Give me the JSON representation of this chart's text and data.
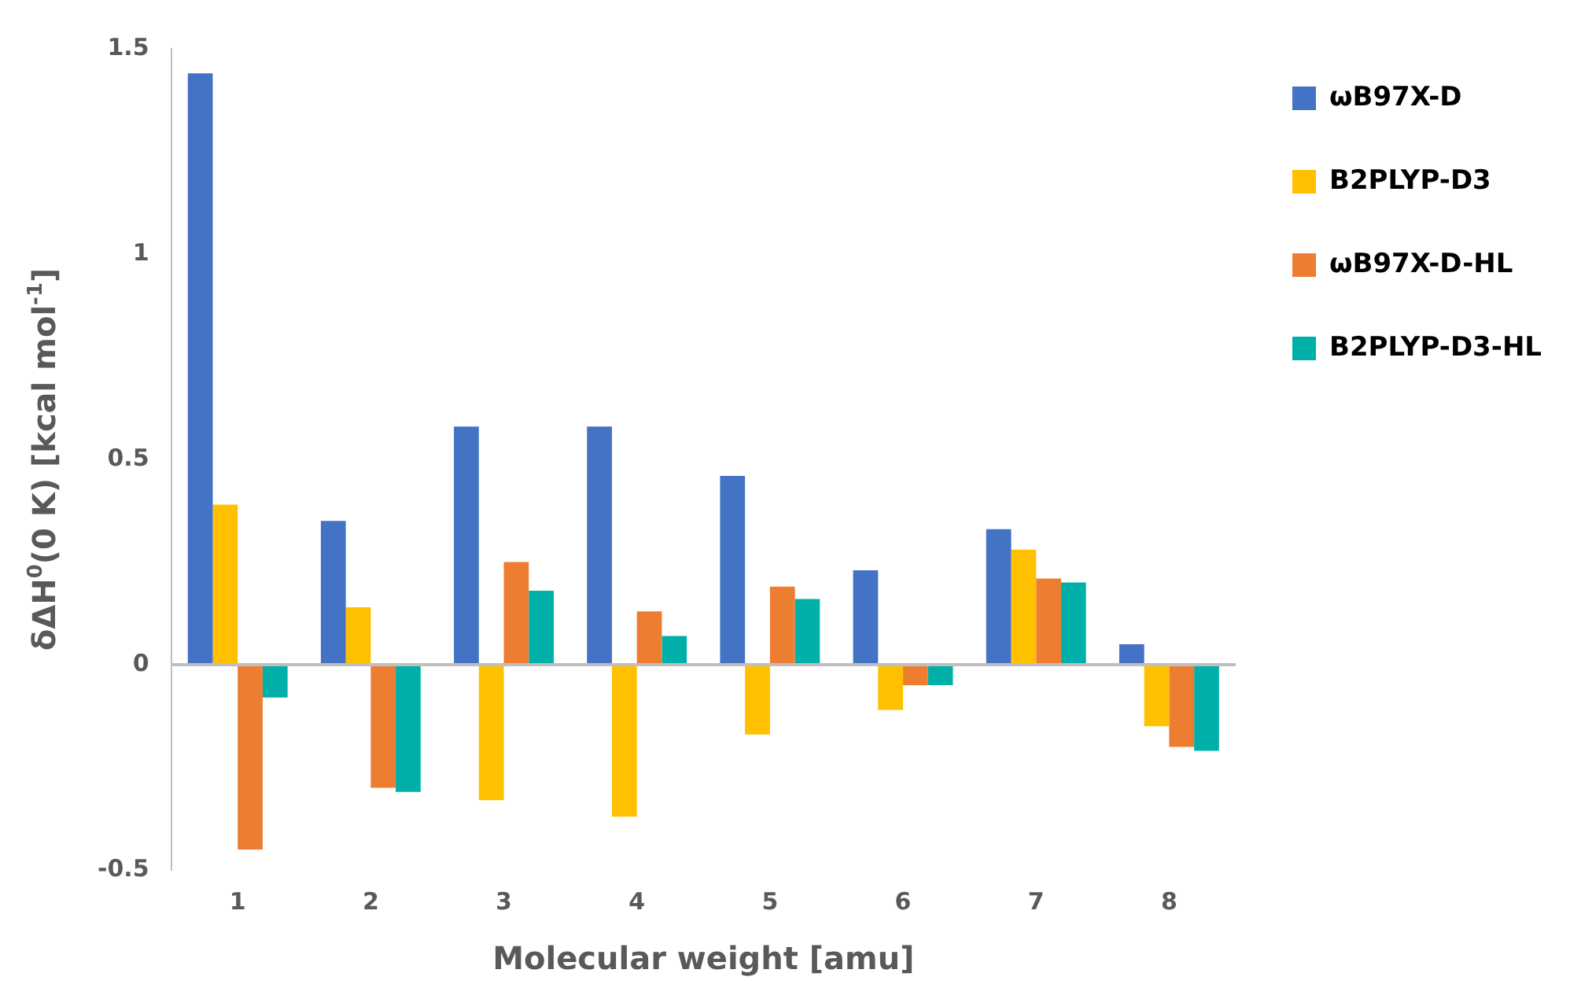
{
  "chart_data": {
    "type": "bar",
    "xlabel": "Molecular weight [amu]",
    "ylabel": "δΔH$^{0}$(0 K) [kcal mol$^{-1}$]",
    "categories": [
      "1",
      "2",
      "3",
      "4",
      "5",
      "6",
      "7",
      "8"
    ],
    "series": [
      {
        "name": "ωB97X-D",
        "color": "#4472c4",
        "values": [
          1.44,
          0.35,
          0.58,
          0.58,
          0.46,
          0.23,
          0.33,
          0.05
        ]
      },
      {
        "name": "B2PLYP-D3",
        "color": "#ffc000",
        "values": [
          0.39,
          0.14,
          -0.33,
          -0.37,
          -0.17,
          -0.11,
          0.28,
          -0.15
        ]
      },
      {
        "name": "ωB97X-D-HL",
        "color": "#ed7d31",
        "values": [
          -0.45,
          -0.3,
          0.25,
          0.13,
          0.19,
          -0.05,
          0.21,
          -0.2
        ]
      },
      {
        "name": "B2PLYP-D3-HL",
        "color": "#00b0a8",
        "values": [
          -0.08,
          -0.31,
          0.18,
          0.07,
          0.16,
          -0.05,
          0.2,
          -0.21
        ]
      }
    ],
    "ylim": [
      -0.5,
      1.5
    ],
    "yticks": [
      -0.5,
      0,
      0.5,
      1,
      1.5
    ],
    "grid": false,
    "ref_lines": [
      {
        "axis": "y",
        "value": 0,
        "color": "#bfbfbf"
      }
    ],
    "legend": "top right"
  }
}
